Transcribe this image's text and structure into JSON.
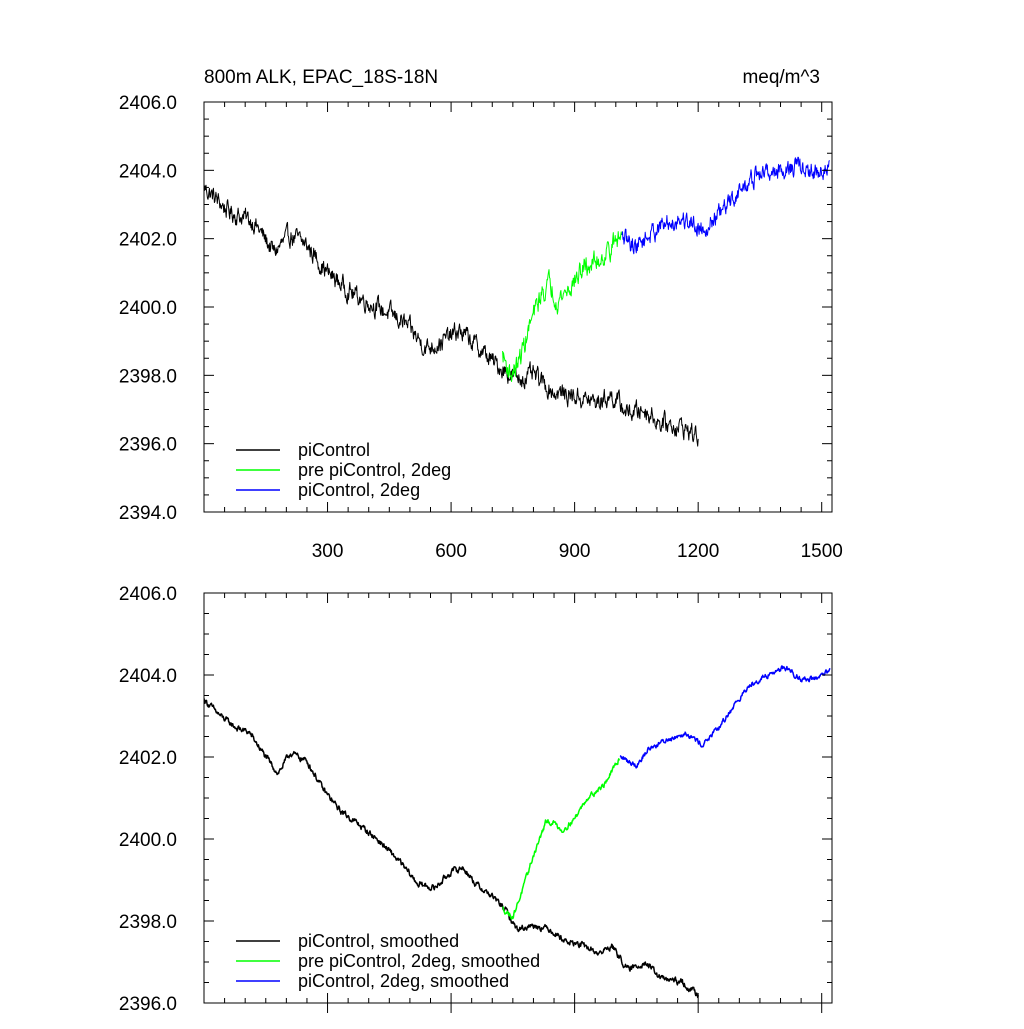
{
  "chart_data": [
    {
      "type": "line",
      "title": "800m ALK, EPAC_18S-18N",
      "units": "meq/m^3",
      "xlabel": "",
      "ylabel": "",
      "xlim": [
        0,
        1525
      ],
      "ylim": [
        2394.0,
        2406.0
      ],
      "x_ticks": [
        300,
        600,
        900,
        1200,
        1500
      ],
      "x_tick_labels": [
        "300",
        "600",
        "900",
        "1200",
        "1500"
      ],
      "y_ticks": [
        2394.0,
        2396.0,
        2398.0,
        2400.0,
        2402.0,
        2404.0,
        2406.0
      ],
      "y_tick_labels": [
        "2394.0",
        "2396.0",
        "2398.0",
        "2400.0",
        "2402.0",
        "2404.0",
        "2406.0"
      ],
      "legend_position": "bottom-left",
      "series": [
        {
          "name": "piControl",
          "color": "#000000",
          "noise": 0.22,
          "points": [
            [
              0,
              2403.5
            ],
            [
              60,
              2402.8
            ],
            [
              120,
              2402.5
            ],
            [
              170,
              2401.6
            ],
            [
              210,
              2402.1
            ],
            [
              250,
              2401.8
            ],
            [
              300,
              2401.0
            ],
            [
              360,
              2400.4
            ],
            [
              420,
              2400.0
            ],
            [
              480,
              2399.6
            ],
            [
              540,
              2398.8
            ],
            [
              580,
              2399.0
            ],
            [
              620,
              2399.3
            ],
            [
              650,
              2399.0
            ],
            [
              700,
              2398.4
            ],
            [
              760,
              2397.9
            ],
            [
              800,
              2398.0
            ],
            [
              850,
              2397.5
            ],
            [
              900,
              2397.4
            ],
            [
              950,
              2397.2
            ],
            [
              990,
              2397.4
            ],
            [
              1030,
              2396.9
            ],
            [
              1070,
              2397.0
            ],
            [
              1110,
              2396.6
            ],
            [
              1160,
              2396.5
            ],
            [
              1200,
              2396.2
            ]
          ]
        },
        {
          "name": "pre piControl, 2deg",
          "color": "#00ff00",
          "noise": 0.25,
          "points": [
            [
              725,
              2398.6
            ],
            [
              745,
              2398.0
            ],
            [
              765,
              2398.4
            ],
            [
              790,
              2399.4
            ],
            [
              820,
              2400.4
            ],
            [
              840,
              2400.7
            ],
            [
              860,
              2400.2
            ],
            [
              890,
              2400.6
            ],
            [
              920,
              2401.1
            ],
            [
              960,
              2401.4
            ],
            [
              1000,
              2401.9
            ],
            [
              1015,
              2402.1
            ]
          ]
        },
        {
          "name": "piControl, 2deg",
          "color": "#0000ff",
          "noise": 0.22,
          "points": [
            [
              1015,
              2402.0
            ],
            [
              1050,
              2401.8
            ],
            [
              1100,
              2402.3
            ],
            [
              1160,
              2402.6
            ],
            [
              1210,
              2402.3
            ],
            [
              1260,
              2402.8
            ],
            [
              1300,
              2403.4
            ],
            [
              1350,
              2403.9
            ],
            [
              1400,
              2404.0
            ],
            [
              1440,
              2404.1
            ],
            [
              1480,
              2403.9
            ],
            [
              1520,
              2404.1
            ]
          ]
        }
      ]
    },
    {
      "type": "line",
      "title": "",
      "units": "",
      "xlabel": "",
      "ylabel": "",
      "xlim": [
        0,
        1525
      ],
      "ylim": [
        2396.0,
        2406.0
      ],
      "x_ticks": [
        300,
        600,
        900,
        1200,
        1500
      ],
      "x_tick_labels": [],
      "y_ticks": [
        2396.0,
        2398.0,
        2400.0,
        2402.0,
        2404.0,
        2406.0
      ],
      "y_tick_labels": [
        "2396.0",
        "2398.0",
        "2400.0",
        "2402.0",
        "2404.0",
        "2406.0"
      ],
      "legend_position": "bottom-left",
      "series": [
        {
          "name": "piControl, smoothed",
          "color": "#000000",
          "noise": 0.06,
          "points": [
            [
              0,
              2403.4
            ],
            [
              40,
              2403.0
            ],
            [
              80,
              2402.7
            ],
            [
              110,
              2402.6
            ],
            [
              150,
              2402.0
            ],
            [
              180,
              2401.6
            ],
            [
              210,
              2402.1
            ],
            [
              250,
              2401.9
            ],
            [
              290,
              2401.2
            ],
            [
              330,
              2400.7
            ],
            [
              370,
              2400.4
            ],
            [
              420,
              2400.0
            ],
            [
              470,
              2399.5
            ],
            [
              520,
              2398.9
            ],
            [
              560,
              2398.8
            ],
            [
              600,
              2399.2
            ],
            [
              630,
              2399.3
            ],
            [
              660,
              2398.9
            ],
            [
              700,
              2398.6
            ],
            [
              730,
              2398.3
            ],
            [
              760,
              2397.8
            ],
            [
              800,
              2397.9
            ],
            [
              840,
              2397.8
            ],
            [
              880,
              2397.5
            ],
            [
              920,
              2397.4
            ],
            [
              960,
              2397.2
            ],
            [
              990,
              2397.4
            ],
            [
              1030,
              2396.8
            ],
            [
              1070,
              2397.0
            ],
            [
              1110,
              2396.6
            ],
            [
              1160,
              2396.5
            ],
            [
              1200,
              2396.2
            ]
          ]
        },
        {
          "name": "pre piControl, 2deg, smoothed",
          "color": "#00ff00",
          "noise": 0.05,
          "points": [
            [
              725,
              2398.3
            ],
            [
              750,
              2398.1
            ],
            [
              775,
              2398.8
            ],
            [
              800,
              2399.6
            ],
            [
              830,
              2400.4
            ],
            [
              850,
              2400.4
            ],
            [
              870,
              2400.2
            ],
            [
              900,
              2400.5
            ],
            [
              930,
              2401.0
            ],
            [
              970,
              2401.3
            ],
            [
              1000,
              2401.8
            ],
            [
              1010,
              2402.0
            ]
          ]
        },
        {
          "name": "piControl, 2deg, smoothed",
          "color": "#0000ff",
          "noise": 0.05,
          "points": [
            [
              1010,
              2402.0
            ],
            [
              1050,
              2401.8
            ],
            [
              1080,
              2402.2
            ],
            [
              1120,
              2402.4
            ],
            [
              1170,
              2402.6
            ],
            [
              1210,
              2402.3
            ],
            [
              1250,
              2402.7
            ],
            [
              1290,
              2403.3
            ],
            [
              1330,
              2403.8
            ],
            [
              1370,
              2404.0
            ],
            [
              1410,
              2404.2
            ],
            [
              1450,
              2403.9
            ],
            [
              1490,
              2403.9
            ],
            [
              1520,
              2404.1
            ]
          ]
        }
      ]
    }
  ]
}
